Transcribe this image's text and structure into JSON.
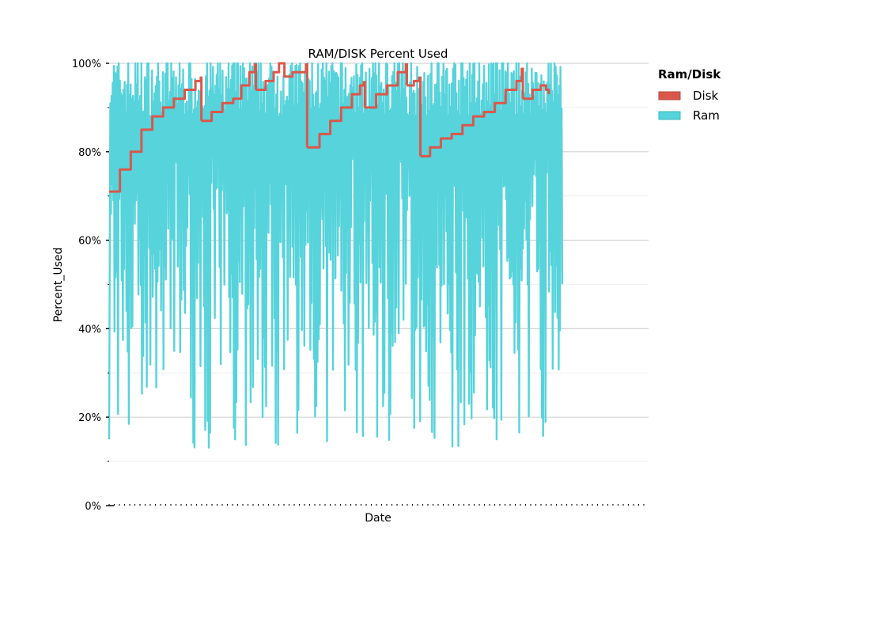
{
  "chart_data": {
    "type": "line",
    "title": "RAM/DISK Percent Used",
    "xlabel": "Date",
    "ylabel": "Percent_Used",
    "ylim": [
      0,
      100
    ],
    "y_major_ticks": [
      0,
      20,
      40,
      60,
      80,
      100
    ],
    "y_tick_labels": [
      "0%",
      "20%",
      "40%",
      "60%",
      "80%",
      "100%"
    ],
    "y_minor_ticks": [
      10,
      30,
      50,
      70,
      90
    ],
    "grid": true,
    "legend": {
      "title": "Ram/Disk",
      "placement": "right-top",
      "entries": [
        "Disk",
        "Ram"
      ]
    },
    "colors": {
      "Disk": "#d9574b",
      "Ram": "#56d3db"
    },
    "x_extent_fraction": 0.84,
    "series": [
      {
        "name": "Disk",
        "segments": [
          [
            [
              0.0,
              71
            ],
            [
              0.02,
              76
            ],
            [
              0.04,
              80
            ],
            [
              0.06,
              85
            ],
            [
              0.08,
              88
            ],
            [
              0.1,
              90
            ],
            [
              0.12,
              92
            ],
            [
              0.14,
              94
            ],
            [
              0.16,
              96
            ],
            [
              0.17,
              97
            ]
          ],
          [
            [
              0.171,
              87
            ],
            [
              0.19,
              89
            ],
            [
              0.21,
              91
            ],
            [
              0.23,
              92
            ],
            [
              0.245,
              95
            ],
            [
              0.26,
              98
            ],
            [
              0.27,
              100
            ]
          ],
          [
            [
              0.272,
              94
            ],
            [
              0.29,
              96
            ],
            [
              0.305,
              98
            ],
            [
              0.315,
              100
            ],
            [
              0.325,
              97
            ],
            [
              0.34,
              98
            ],
            [
              0.355,
              98
            ],
            [
              0.365,
              100
            ]
          ],
          [
            [
              0.367,
              81
            ],
            [
              0.39,
              84
            ],
            [
              0.41,
              87
            ],
            [
              0.43,
              90
            ],
            [
              0.45,
              93
            ],
            [
              0.465,
              95
            ],
            [
              0.472,
              96
            ]
          ],
          [
            [
              0.474,
              90
            ],
            [
              0.495,
              93
            ],
            [
              0.515,
              95
            ],
            [
              0.535,
              98
            ],
            [
              0.55,
              100
            ]
          ],
          [
            [
              0.552,
              95
            ],
            [
              0.565,
              96
            ],
            [
              0.575,
              97
            ]
          ],
          [
            [
              0.577,
              79
            ],
            [
              0.595,
              81
            ],
            [
              0.615,
              83
            ],
            [
              0.635,
              84
            ],
            [
              0.655,
              86
            ],
            [
              0.675,
              88
            ],
            [
              0.695,
              89
            ],
            [
              0.715,
              91
            ],
            [
              0.735,
              94
            ],
            [
              0.755,
              96
            ],
            [
              0.765,
              99
            ]
          ],
          [
            [
              0.767,
              92
            ],
            [
              0.785,
              94
            ],
            [
              0.8,
              95
            ],
            [
              0.81,
              94
            ],
            [
              0.815,
              93
            ]
          ]
        ]
      },
      {
        "name": "Ram",
        "n_points": 760,
        "seed": 7,
        "typical_range": [
          45,
          100
        ],
        "spike_minimum": 13
      }
    ]
  }
}
